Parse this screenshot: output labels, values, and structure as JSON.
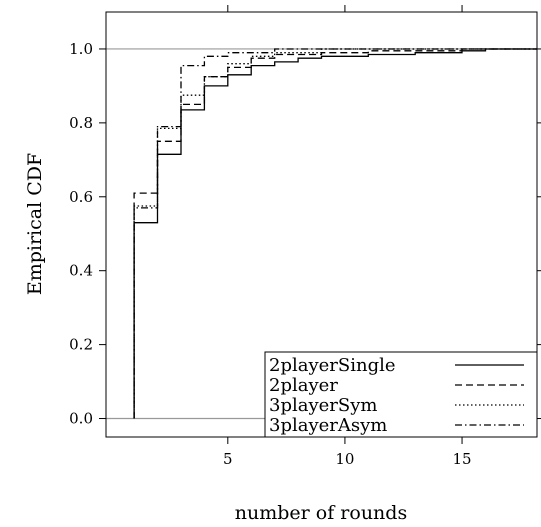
{
  "chart_data": {
    "type": "line",
    "subtype": "step-ecdf",
    "title": "",
    "xlabel": "number of rounds",
    "ylabel": "Empirical CDF",
    "xlim": [
      -0.2,
      18.2
    ],
    "ylim": [
      -0.05,
      1.1
    ],
    "x_ticks": [
      5,
      10,
      15
    ],
    "x_tick_labels": [
      "5",
      "10",
      "15"
    ],
    "y_ticks": [
      0.0,
      0.2,
      0.4,
      0.6,
      0.8,
      1.0
    ],
    "y_tick_labels": [
      "0.0",
      "0.2",
      "0.4",
      "0.6",
      "0.8",
      "1.0"
    ],
    "reference_lines": [
      0,
      1
    ],
    "grid": false,
    "legend_position": "bottom-right",
    "series": [
      {
        "name": "2playerSingle",
        "line_style": "solid",
        "points": [
          [
            1,
            0
          ],
          [
            1,
            0.53
          ],
          [
            2,
            0.53
          ],
          [
            2,
            0.715
          ],
          [
            3,
            0.715
          ],
          [
            3,
            0.835
          ],
          [
            4,
            0.835
          ],
          [
            4,
            0.9
          ],
          [
            5,
            0.9
          ],
          [
            5,
            0.93
          ],
          [
            6,
            0.93
          ],
          [
            6,
            0.955
          ],
          [
            7,
            0.955
          ],
          [
            7,
            0.965
          ],
          [
            8,
            0.965
          ],
          [
            8,
            0.975
          ],
          [
            9,
            0.975
          ],
          [
            9,
            0.98
          ],
          [
            11,
            0.98
          ],
          [
            11,
            0.985
          ],
          [
            13,
            0.985
          ],
          [
            13,
            0.99
          ],
          [
            15,
            0.99
          ],
          [
            15,
            0.995
          ],
          [
            16,
            0.995
          ],
          [
            16,
            1.0
          ],
          [
            18.2,
            1.0
          ]
        ]
      },
      {
        "name": "2player",
        "line_style": "dashed",
        "points": [
          [
            1,
            0
          ],
          [
            1,
            0.61
          ],
          [
            2,
            0.61
          ],
          [
            2,
            0.75
          ],
          [
            3,
            0.75
          ],
          [
            3,
            0.85
          ],
          [
            4,
            0.85
          ],
          [
            4,
            0.925
          ],
          [
            5,
            0.925
          ],
          [
            5,
            0.95
          ],
          [
            6,
            0.95
          ],
          [
            6,
            0.975
          ],
          [
            7,
            0.975
          ],
          [
            7,
            0.985
          ],
          [
            9,
            0.985
          ],
          [
            9,
            0.99
          ],
          [
            11,
            0.99
          ],
          [
            11,
            0.995
          ],
          [
            15,
            0.995
          ],
          [
            15,
            1.0
          ],
          [
            18.2,
            1.0
          ]
        ]
      },
      {
        "name": "3playerSym",
        "line_style": "dotted",
        "points": [
          [
            1,
            0
          ],
          [
            1,
            0.575
          ],
          [
            2,
            0.575
          ],
          [
            2,
            0.785
          ],
          [
            3,
            0.785
          ],
          [
            3,
            0.875
          ],
          [
            4,
            0.875
          ],
          [
            4,
            0.925
          ],
          [
            5,
            0.925
          ],
          [
            5,
            0.96
          ],
          [
            6,
            0.96
          ],
          [
            6,
            0.98
          ],
          [
            7,
            0.98
          ],
          [
            7,
            0.99
          ],
          [
            9,
            0.99
          ],
          [
            9,
            1.0
          ],
          [
            18.2,
            1.0
          ]
        ]
      },
      {
        "name": "3playerAsym",
        "line_style": "dashdot",
        "points": [
          [
            1,
            0
          ],
          [
            1,
            0.57
          ],
          [
            2,
            0.57
          ],
          [
            2,
            0.79
          ],
          [
            3,
            0.79
          ],
          [
            3,
            0.955
          ],
          [
            4,
            0.955
          ],
          [
            4,
            0.98
          ],
          [
            5,
            0.98
          ],
          [
            5,
            0.99
          ],
          [
            7,
            0.99
          ],
          [
            7,
            1.0
          ],
          [
            18.2,
            1.0
          ]
        ]
      }
    ]
  }
}
